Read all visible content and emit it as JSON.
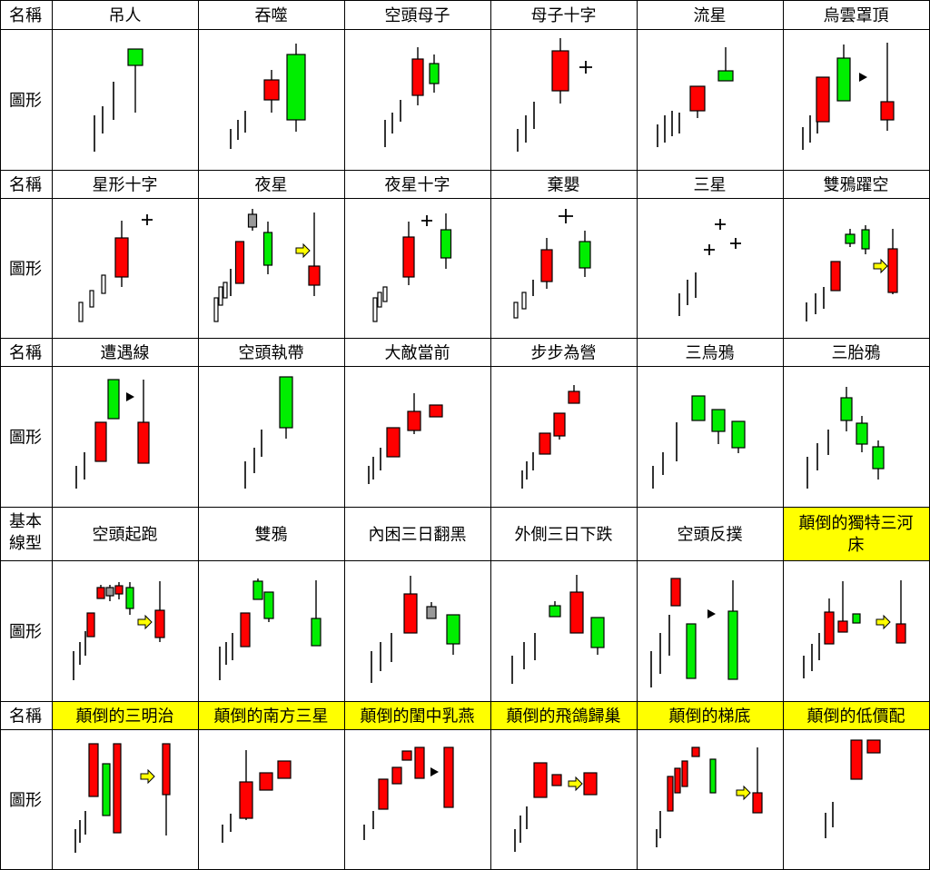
{
  "colors": {
    "bull": "#ff0000",
    "bear": "#00ee00",
    "doji": "#ffffff",
    "neutral": "#999999",
    "highlight": "#ffff00",
    "grid": "#000000",
    "arrow_fill": "#ffff00"
  },
  "row_labels": {
    "name": "名稱",
    "figure": "圖形",
    "basic": "基本線型"
  },
  "patterns": [
    "吊人",
    "吞噬",
    "空頭母子",
    "母子十字",
    "流星",
    "烏雲罩頂",
    "星形十字",
    "夜星",
    "夜星十字",
    "棄嬰",
    "三星",
    "雙鴉躍空",
    "遭遇線",
    "空頭執帶",
    "大敵當前",
    "步步為營",
    "三烏鴉",
    "三胎鴉",
    "空頭起跑",
    "雙鴉",
    "內困三日翻黑",
    "外側三日下跌",
    "空頭反撲",
    "顛倒的獨特三河床",
    "顛倒的三明治",
    "顛倒的南方三星",
    "顛倒的閨中乳燕",
    "顛倒的飛鴿歸巢",
    "顛倒的梯底",
    "顛倒的低價配"
  ],
  "highlighted_patterns": [
    23,
    24,
    25,
    26,
    27,
    28,
    29
  ],
  "icons": {
    "transition_arrow": "yellow-right-arrow-icon",
    "pointer_arrow": "black-triangle-icon"
  }
}
